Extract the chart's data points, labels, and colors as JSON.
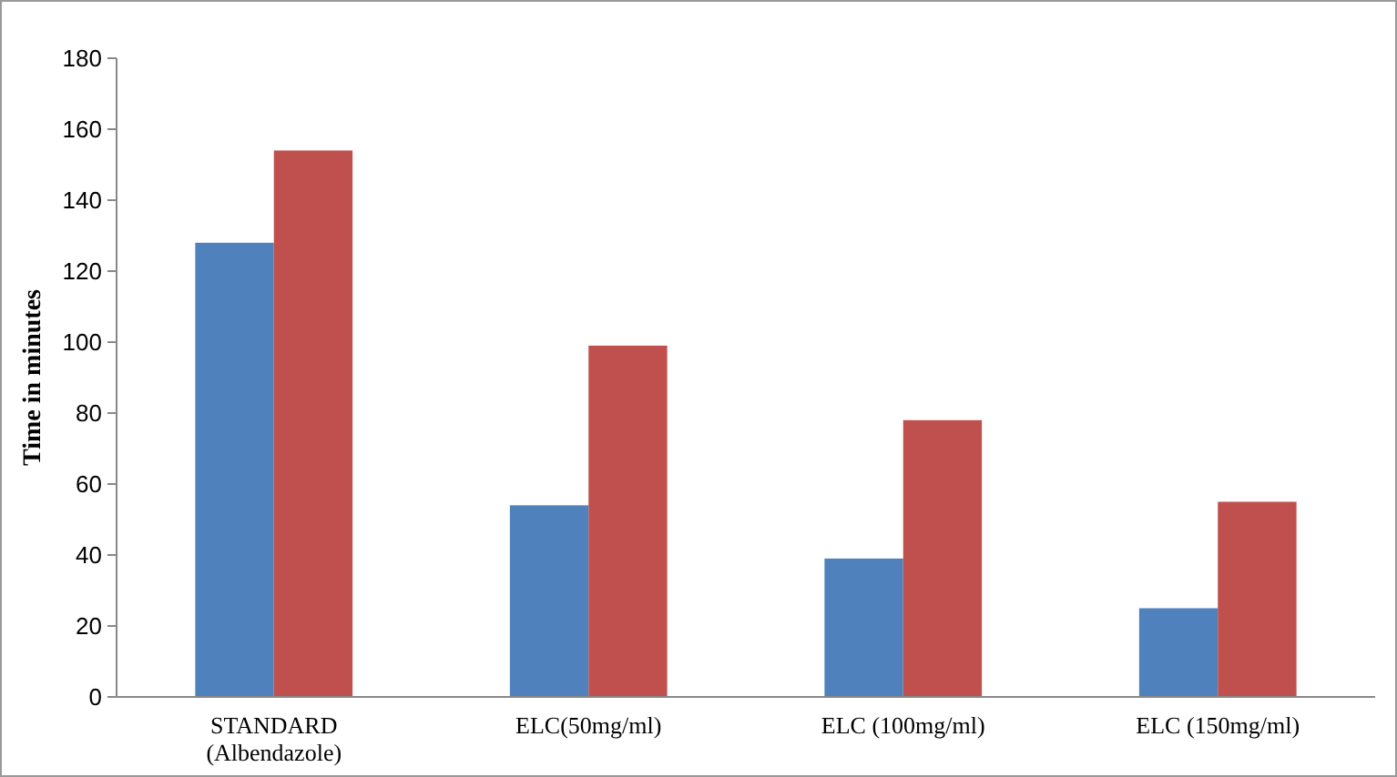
{
  "chart_data": {
    "type": "bar",
    "ylabel": "Time in minutes",
    "categories": [
      "STANDARD\n(Albendazole)",
      "ELC(50mg/ml)",
      "ELC (100mg/ml)",
      "ELC (150mg/ml)"
    ],
    "series": [
      {
        "color": "#4f81bd",
        "values": [
          128,
          54,
          39,
          25
        ]
      },
      {
        "color": "#c0504d",
        "values": [
          154,
          99,
          78,
          55
        ]
      }
    ],
    "ylim": [
      0,
      180
    ],
    "yticks": [
      0,
      20,
      40,
      60,
      80,
      100,
      120,
      140,
      160,
      180
    ],
    "grid": false
  }
}
